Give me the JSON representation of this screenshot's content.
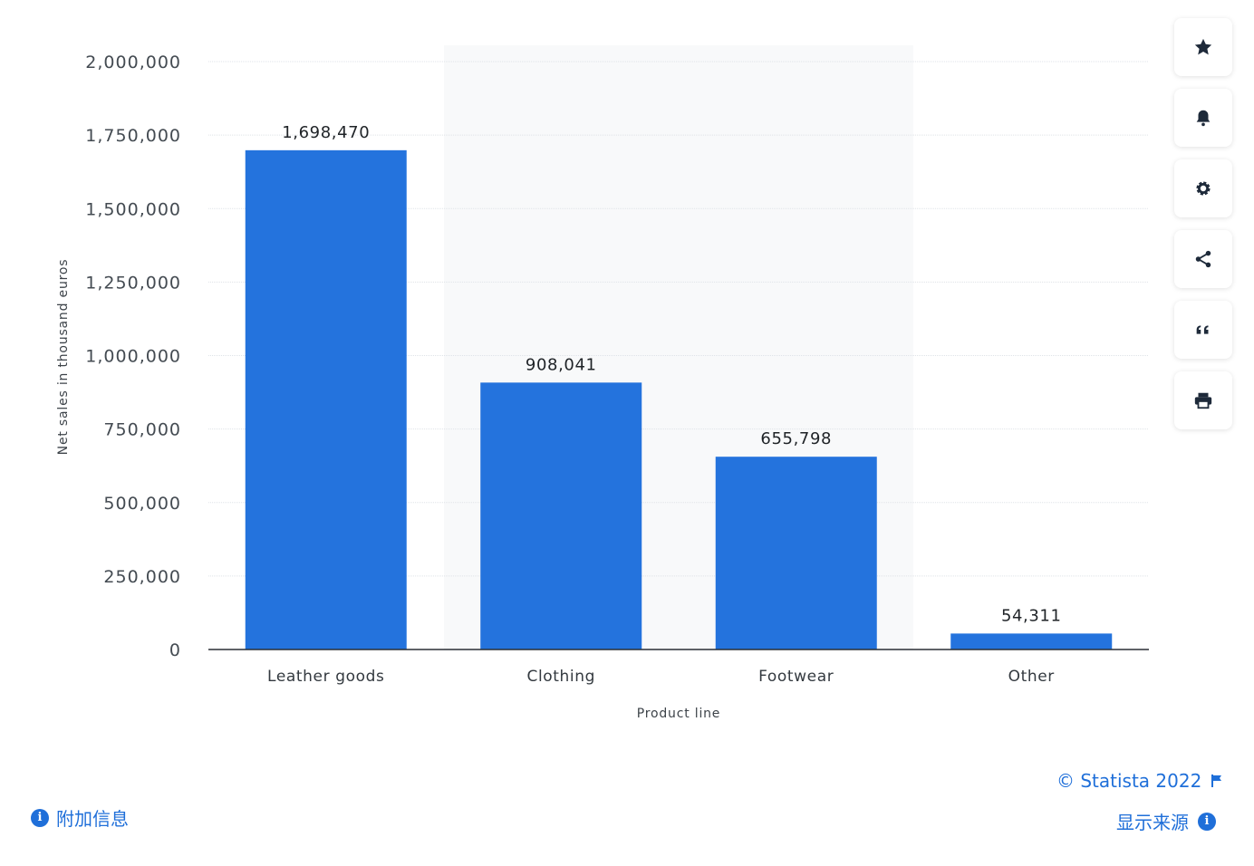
{
  "chart_data": {
    "type": "bar",
    "categories": [
      "Leather goods",
      "Clothing",
      "Footwear",
      "Other"
    ],
    "values": [
      1698470,
      908041,
      655798,
      54311
    ],
    "value_labels": [
      "1,698,470",
      "908,041",
      "655,798",
      "54,311"
    ],
    "xlabel": "Product line",
    "ylabel": "Net sales in thousand euros",
    "ylim": [
      0,
      2000000
    ],
    "yticks": [
      0,
      250000,
      500000,
      750000,
      1000000,
      1250000,
      1500000,
      1750000,
      2000000
    ],
    "ytick_labels": [
      "0",
      "250,000",
      "500,000",
      "750,000",
      "1,000,000",
      "1,250,000",
      "1,500,000",
      "1,750,000",
      "2,000,000"
    ],
    "grid": true,
    "bar_color": "#2473dd"
  },
  "toolbar": {
    "icons": [
      "star-icon",
      "bell-icon",
      "gear-icon",
      "share-icon",
      "quote-icon",
      "print-icon"
    ]
  },
  "footer": {
    "additional_info": "附加信息",
    "credit": "© Statista 2022",
    "show_source": "显示来源"
  },
  "colors": {
    "accent": "#1f6fd9",
    "bar": "#2473dd",
    "grid": "#dfe3e8"
  }
}
